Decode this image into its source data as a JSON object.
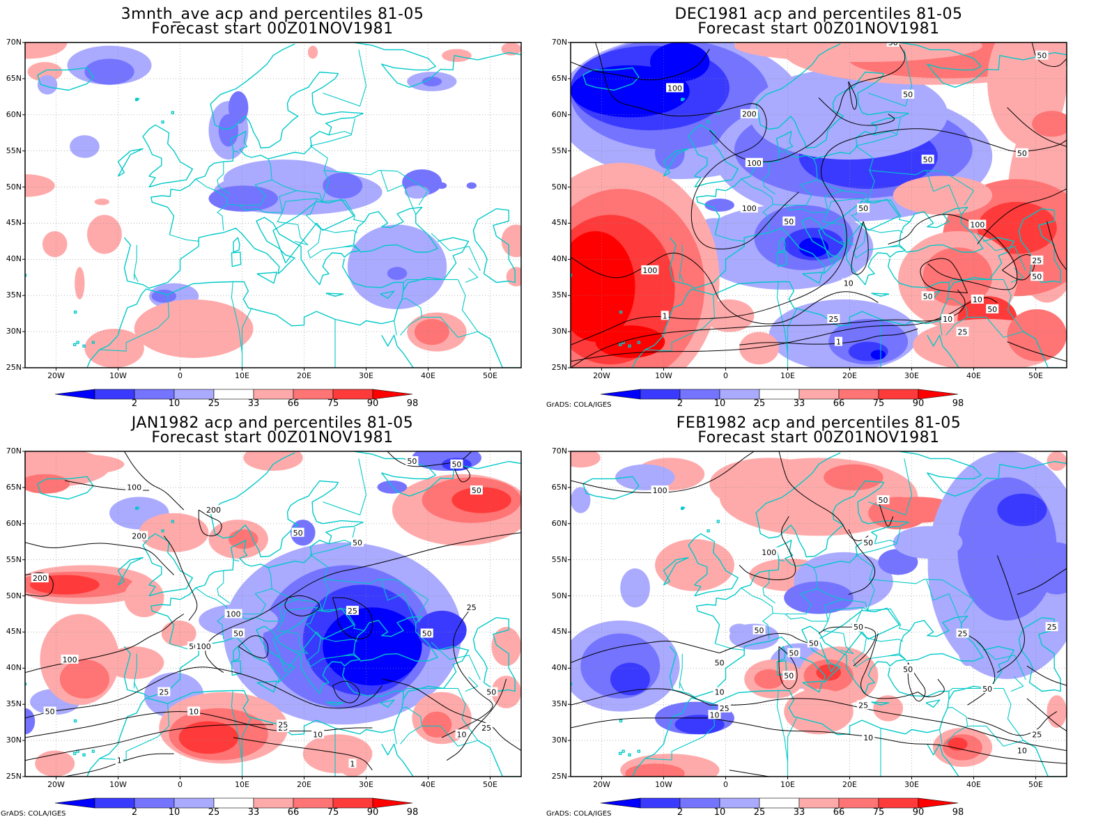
{
  "credit": "GrADS: COLA/IGES",
  "lat_labels": [
    "70N",
    "65N",
    "60N",
    "55N",
    "50N",
    "45N",
    "40N",
    "35N",
    "30N",
    "25N"
  ],
  "lon_labels": [
    "20W",
    "10W",
    "0",
    "10E",
    "20E",
    "30E",
    "40E",
    "50E"
  ],
  "colorbar": {
    "labels": [
      "2",
      "10",
      "25",
      "33",
      "66",
      "75",
      "90",
      "98"
    ],
    "colors": [
      "#0000ff",
      "#3a3aff",
      "#7474ff",
      "#aaaaff",
      "#ffffff",
      "#ffaaaa",
      "#ff7474",
      "#ff3a3a",
      "#ff0000"
    ]
  },
  "colors": {
    "coast": "#00c8c8",
    "contour": "#000000",
    "frame": "#000000"
  },
  "panels": [
    {
      "title": "3mnth_ave acp and percentiles 81-05",
      "subtitle": "Forecast start 00Z01NOV1981",
      "contour_labels": []
    },
    {
      "title": "DEC1981 acp and percentiles 81-05",
      "subtitle": "Forecast start 00Z01NOV1981",
      "contour_labels": [
        "50",
        "50",
        "100",
        "200",
        "50",
        "50",
        "100",
        "50",
        "100",
        "50",
        "50",
        "100",
        "50",
        "50",
        "10",
        "25",
        "10",
        "1",
        "25",
        "1",
        "50",
        "10",
        "25",
        "100"
      ]
    },
    {
      "title": "JAN1982 acp and percentiles 81-05",
      "subtitle": "Forecast start 00Z01NOV1981",
      "contour_labels": [
        "50",
        "50",
        "100",
        "200",
        "50",
        "200",
        "50",
        "200",
        "50",
        "100",
        "25",
        "25",
        "100",
        "50",
        "50",
        "50",
        "100",
        "50",
        "25",
        "10",
        "25",
        "10",
        "1",
        "25",
        "10",
        "25",
        "50",
        "1"
      ]
    },
    {
      "title": "FEB1982 acp and percentiles 81-05",
      "subtitle": "Forecast start 00Z01NOV1981",
      "contour_labels": [
        "100",
        "50",
        "50",
        "100",
        "50",
        "50",
        "50",
        "50",
        "50",
        "50",
        "50",
        "25",
        "25",
        "50",
        "10",
        "10",
        "25",
        "10",
        "25",
        "10",
        "25"
      ]
    }
  ]
}
